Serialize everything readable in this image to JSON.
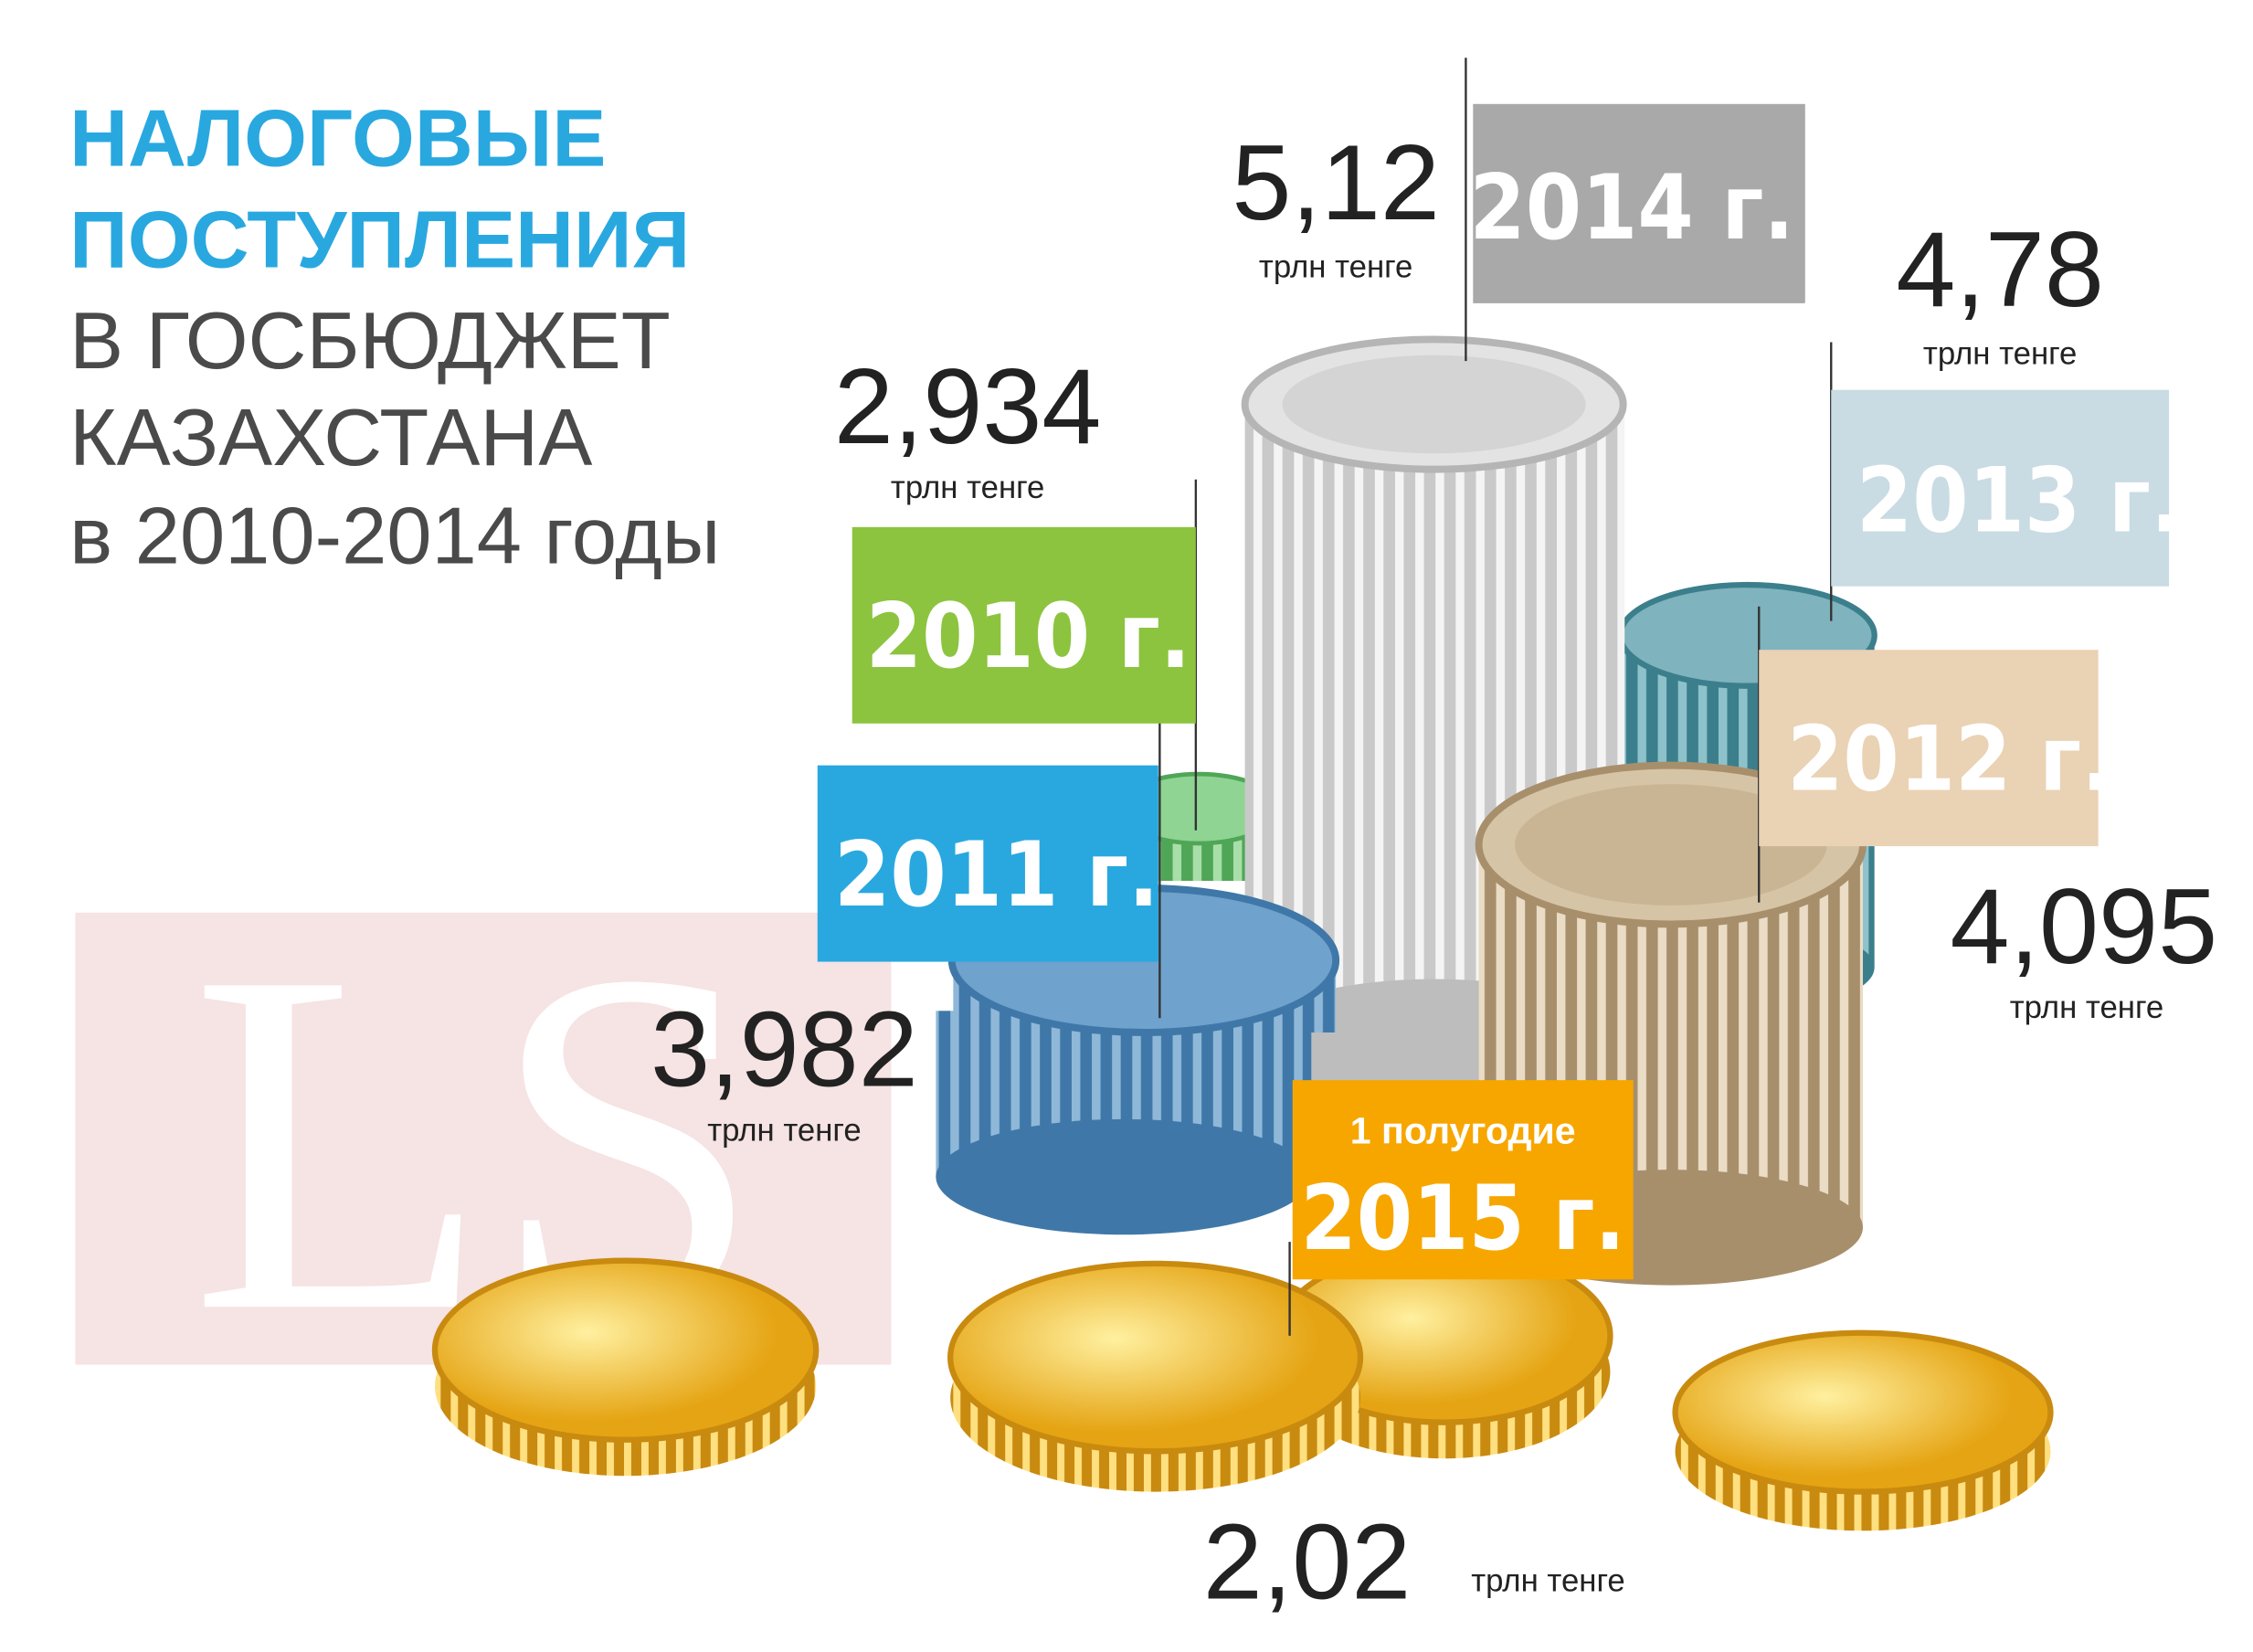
{
  "title": {
    "lines": [
      "НАЛОГОВЫЕ",
      "ПОСТУПЛЕНИЯ",
      "В ГОСБЮДЖЕТ",
      "КАЗАХСТАНА",
      "в 2010-2014 годы"
    ]
  },
  "watermark": "LS",
  "items": [
    {
      "year": "2014 г.",
      "value": "5,12",
      "unit": "трлн тенге"
    },
    {
      "year": "2013 г.",
      "value": "4,78",
      "unit": "трлн тенге"
    },
    {
      "year": "2010 г.",
      "value": "2,934",
      "unit": "трлн тенге"
    },
    {
      "year": "2011 г.",
      "value": "3,982",
      "unit": "трлн тенге"
    },
    {
      "year": "2012 г.",
      "value": "4,095",
      "unit": "трлн тенге"
    },
    {
      "period": "1 полугодие",
      "year": "2015 г.",
      "value": "2,02",
      "unit": "трлн тенге"
    }
  ]
}
